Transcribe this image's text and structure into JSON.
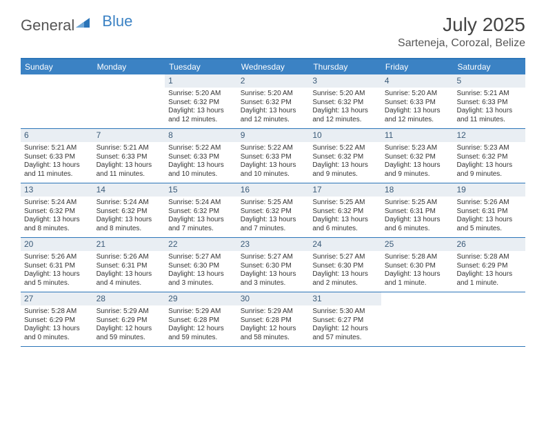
{
  "logo": {
    "word1": "General",
    "word2": "Blue"
  },
  "title": "July 2025",
  "location": "Sarteneja, Corozal, Belize",
  "colors": {
    "accent": "#3b82c4",
    "border": "#2a74b8",
    "daynum_bg": "#e9eef3",
    "daynum_fg": "#3a5a78",
    "text": "#333333",
    "background": "#ffffff"
  },
  "dow": [
    "Sunday",
    "Monday",
    "Tuesday",
    "Wednesday",
    "Thursday",
    "Friday",
    "Saturday"
  ],
  "weeks": [
    [
      {
        "n": "",
        "sr": "",
        "ss": "",
        "dl": "",
        "empty": true
      },
      {
        "n": "",
        "sr": "",
        "ss": "",
        "dl": "",
        "empty": true
      },
      {
        "n": "1",
        "sr": "Sunrise: 5:20 AM",
        "ss": "Sunset: 6:32 PM",
        "dl": "Daylight: 13 hours and 12 minutes."
      },
      {
        "n": "2",
        "sr": "Sunrise: 5:20 AM",
        "ss": "Sunset: 6:32 PM",
        "dl": "Daylight: 13 hours and 12 minutes."
      },
      {
        "n": "3",
        "sr": "Sunrise: 5:20 AM",
        "ss": "Sunset: 6:32 PM",
        "dl": "Daylight: 13 hours and 12 minutes."
      },
      {
        "n": "4",
        "sr": "Sunrise: 5:20 AM",
        "ss": "Sunset: 6:33 PM",
        "dl": "Daylight: 13 hours and 12 minutes."
      },
      {
        "n": "5",
        "sr": "Sunrise: 5:21 AM",
        "ss": "Sunset: 6:33 PM",
        "dl": "Daylight: 13 hours and 11 minutes."
      }
    ],
    [
      {
        "n": "6",
        "sr": "Sunrise: 5:21 AM",
        "ss": "Sunset: 6:33 PM",
        "dl": "Daylight: 13 hours and 11 minutes."
      },
      {
        "n": "7",
        "sr": "Sunrise: 5:21 AM",
        "ss": "Sunset: 6:33 PM",
        "dl": "Daylight: 13 hours and 11 minutes."
      },
      {
        "n": "8",
        "sr": "Sunrise: 5:22 AM",
        "ss": "Sunset: 6:33 PM",
        "dl": "Daylight: 13 hours and 10 minutes."
      },
      {
        "n": "9",
        "sr": "Sunrise: 5:22 AM",
        "ss": "Sunset: 6:33 PM",
        "dl": "Daylight: 13 hours and 10 minutes."
      },
      {
        "n": "10",
        "sr": "Sunrise: 5:22 AM",
        "ss": "Sunset: 6:32 PM",
        "dl": "Daylight: 13 hours and 9 minutes."
      },
      {
        "n": "11",
        "sr": "Sunrise: 5:23 AM",
        "ss": "Sunset: 6:32 PM",
        "dl": "Daylight: 13 hours and 9 minutes."
      },
      {
        "n": "12",
        "sr": "Sunrise: 5:23 AM",
        "ss": "Sunset: 6:32 PM",
        "dl": "Daylight: 13 hours and 9 minutes."
      }
    ],
    [
      {
        "n": "13",
        "sr": "Sunrise: 5:24 AM",
        "ss": "Sunset: 6:32 PM",
        "dl": "Daylight: 13 hours and 8 minutes."
      },
      {
        "n": "14",
        "sr": "Sunrise: 5:24 AM",
        "ss": "Sunset: 6:32 PM",
        "dl": "Daylight: 13 hours and 8 minutes."
      },
      {
        "n": "15",
        "sr": "Sunrise: 5:24 AM",
        "ss": "Sunset: 6:32 PM",
        "dl": "Daylight: 13 hours and 7 minutes."
      },
      {
        "n": "16",
        "sr": "Sunrise: 5:25 AM",
        "ss": "Sunset: 6:32 PM",
        "dl": "Daylight: 13 hours and 7 minutes."
      },
      {
        "n": "17",
        "sr": "Sunrise: 5:25 AM",
        "ss": "Sunset: 6:32 PM",
        "dl": "Daylight: 13 hours and 6 minutes."
      },
      {
        "n": "18",
        "sr": "Sunrise: 5:25 AM",
        "ss": "Sunset: 6:31 PM",
        "dl": "Daylight: 13 hours and 6 minutes."
      },
      {
        "n": "19",
        "sr": "Sunrise: 5:26 AM",
        "ss": "Sunset: 6:31 PM",
        "dl": "Daylight: 13 hours and 5 minutes."
      }
    ],
    [
      {
        "n": "20",
        "sr": "Sunrise: 5:26 AM",
        "ss": "Sunset: 6:31 PM",
        "dl": "Daylight: 13 hours and 5 minutes."
      },
      {
        "n": "21",
        "sr": "Sunrise: 5:26 AM",
        "ss": "Sunset: 6:31 PM",
        "dl": "Daylight: 13 hours and 4 minutes."
      },
      {
        "n": "22",
        "sr": "Sunrise: 5:27 AM",
        "ss": "Sunset: 6:30 PM",
        "dl": "Daylight: 13 hours and 3 minutes."
      },
      {
        "n": "23",
        "sr": "Sunrise: 5:27 AM",
        "ss": "Sunset: 6:30 PM",
        "dl": "Daylight: 13 hours and 3 minutes."
      },
      {
        "n": "24",
        "sr": "Sunrise: 5:27 AM",
        "ss": "Sunset: 6:30 PM",
        "dl": "Daylight: 13 hours and 2 minutes."
      },
      {
        "n": "25",
        "sr": "Sunrise: 5:28 AM",
        "ss": "Sunset: 6:30 PM",
        "dl": "Daylight: 13 hours and 1 minute."
      },
      {
        "n": "26",
        "sr": "Sunrise: 5:28 AM",
        "ss": "Sunset: 6:29 PM",
        "dl": "Daylight: 13 hours and 1 minute."
      }
    ],
    [
      {
        "n": "27",
        "sr": "Sunrise: 5:28 AM",
        "ss": "Sunset: 6:29 PM",
        "dl": "Daylight: 13 hours and 0 minutes."
      },
      {
        "n": "28",
        "sr": "Sunrise: 5:29 AM",
        "ss": "Sunset: 6:29 PM",
        "dl": "Daylight: 12 hours and 59 minutes."
      },
      {
        "n": "29",
        "sr": "Sunrise: 5:29 AM",
        "ss": "Sunset: 6:28 PM",
        "dl": "Daylight: 12 hours and 59 minutes."
      },
      {
        "n": "30",
        "sr": "Sunrise: 5:29 AM",
        "ss": "Sunset: 6:28 PM",
        "dl": "Daylight: 12 hours and 58 minutes."
      },
      {
        "n": "31",
        "sr": "Sunrise: 5:30 AM",
        "ss": "Sunset: 6:27 PM",
        "dl": "Daylight: 12 hours and 57 minutes."
      },
      {
        "n": "",
        "sr": "",
        "ss": "",
        "dl": "",
        "empty": true
      },
      {
        "n": "",
        "sr": "",
        "ss": "",
        "dl": "",
        "empty": true
      }
    ]
  ]
}
